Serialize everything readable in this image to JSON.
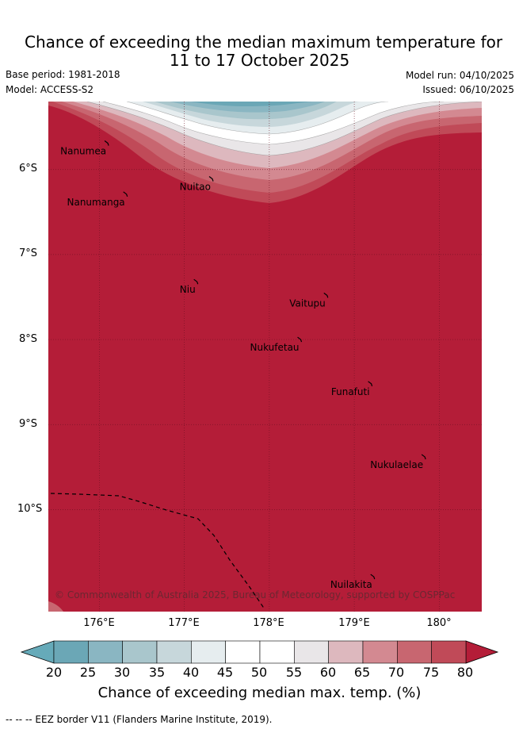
{
  "title": {
    "line1": "Chance of exceeding the median maximum temperature for",
    "line2": "11 to 17 October 2025"
  },
  "meta": {
    "base_period": "Base period: 1981-2018",
    "model": "Model: ACCESS-S2",
    "model_run": "Model run: 04/10/2025",
    "issued": "Issued: 06/10/2025"
  },
  "map": {
    "islands": [
      {
        "name": "Nanumea",
        "lon": 176.1,
        "lat": -5.69
      },
      {
        "name": "Nuitao",
        "lon": 177.33,
        "lat": -6.11
      },
      {
        "name": "Nanumanga",
        "lon": 176.32,
        "lat": -6.29
      },
      {
        "name": "Niu",
        "lon": 177.15,
        "lat": -7.32
      },
      {
        "name": "Vaitupu",
        "lon": 178.68,
        "lat": -7.48
      },
      {
        "name": "Nukufetau",
        "lon": 178.37,
        "lat": -8.0
      },
      {
        "name": "Funafuti",
        "lon": 179.2,
        "lat": -8.52
      },
      {
        "name": "Nukulaelae",
        "lon": 179.83,
        "lat": -9.38
      },
      {
        "name": "Nuilakita",
        "lon": 179.23,
        "lat": -10.79
      }
    ],
    "copyright": "© Commonwealth of Australia 2025, Bureau of Meteorology, supported by COSPPac",
    "lat_ticks": [
      "6°S",
      "7°S",
      "8°S",
      "9°S",
      "10°S"
    ],
    "lon_ticks": [
      "176°E",
      "177°E",
      "178°E",
      "179°E",
      "180°"
    ],
    "lat_values": [
      -6,
      -7,
      -8,
      -9,
      -10
    ],
    "lon_values": [
      176,
      177,
      178,
      179,
      180
    ],
    "extent": {
      "lon_min": 175.4,
      "lon_max": 180.5,
      "lat_min": -11.2,
      "lat_max": -5.2
    }
  },
  "colorbar": {
    "ticks": [
      "20",
      "25",
      "30",
      "35",
      "40",
      "45",
      "50",
      "55",
      "60",
      "65",
      "70",
      "75",
      "80"
    ],
    "colors": [
      "#66aab9",
      "#6ba7b6",
      "#8ab6c2",
      "#a9c6cc",
      "#c7d7db",
      "#e6edef",
      "#ffffff",
      "#ffffff",
      "#e9e6e8",
      "#ddb8be",
      "#d38991",
      "#c86670",
      "#c04a58",
      "#b41d38"
    ],
    "label": "Chance of exceeding median max. temp. (%)"
  },
  "footer": "--  --  -- EEZ border V11 (Flanders Marine Institute, 2019)."
}
